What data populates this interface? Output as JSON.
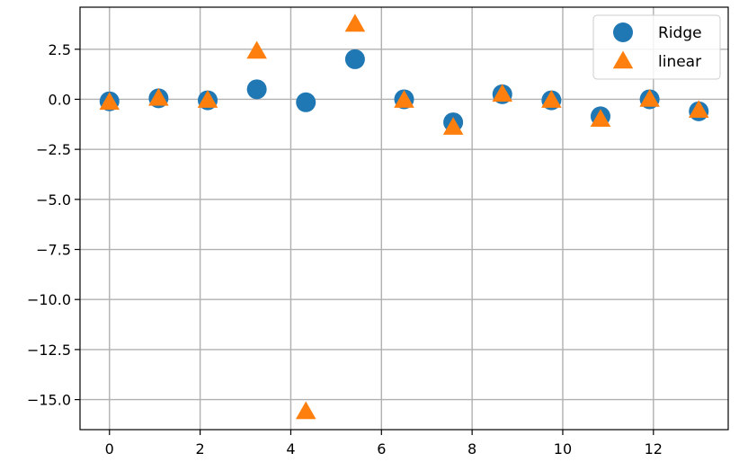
{
  "chart_data": {
    "type": "scatter",
    "title": "",
    "xlabel": "",
    "ylabel": "",
    "xlim": [
      -0.65,
      13.65
    ],
    "ylim": [
      -16.5,
      4.6
    ],
    "x_ticks": [
      0,
      2,
      4,
      6,
      8,
      10,
      12
    ],
    "y_ticks": [
      2.5,
      0.0,
      -2.5,
      -5.0,
      -7.5,
      -10.0,
      -12.5,
      -15.0
    ],
    "x_tick_labels": [
      "0",
      "2",
      "4",
      "6",
      "8",
      "10",
      "12"
    ],
    "y_tick_labels": [
      "2.5",
      "0.0",
      "−2.5",
      "−5.0",
      "−7.5",
      "−10.0",
      "−12.5",
      "−15.0"
    ],
    "grid": true,
    "legend_position": "top-right",
    "series": [
      {
        "name": "Ridge",
        "marker": "circle",
        "color": "#1f77b4",
        "x": [
          0,
          1.083,
          2.167,
          3.25,
          4.333,
          5.417,
          6.5,
          7.583,
          8.667,
          9.75,
          10.833,
          11.917,
          13
        ],
        "y": [
          -0.1,
          0.05,
          -0.05,
          0.5,
          -0.15,
          2.0,
          0.0,
          -1.15,
          0.25,
          -0.05,
          -0.85,
          0.0,
          -0.6
        ]
      },
      {
        "name": "linear",
        "marker": "triangle",
        "color": "#ff7f0e",
        "x": [
          0,
          1.083,
          2.167,
          3.25,
          4.333,
          5.417,
          6.5,
          7.583,
          8.667,
          9.75,
          10.833,
          11.917,
          13
        ],
        "y": [
          -0.15,
          0.05,
          -0.05,
          2.4,
          -15.6,
          3.75,
          -0.05,
          -1.4,
          0.25,
          -0.05,
          -1.0,
          0.0,
          -0.55
        ]
      }
    ]
  }
}
